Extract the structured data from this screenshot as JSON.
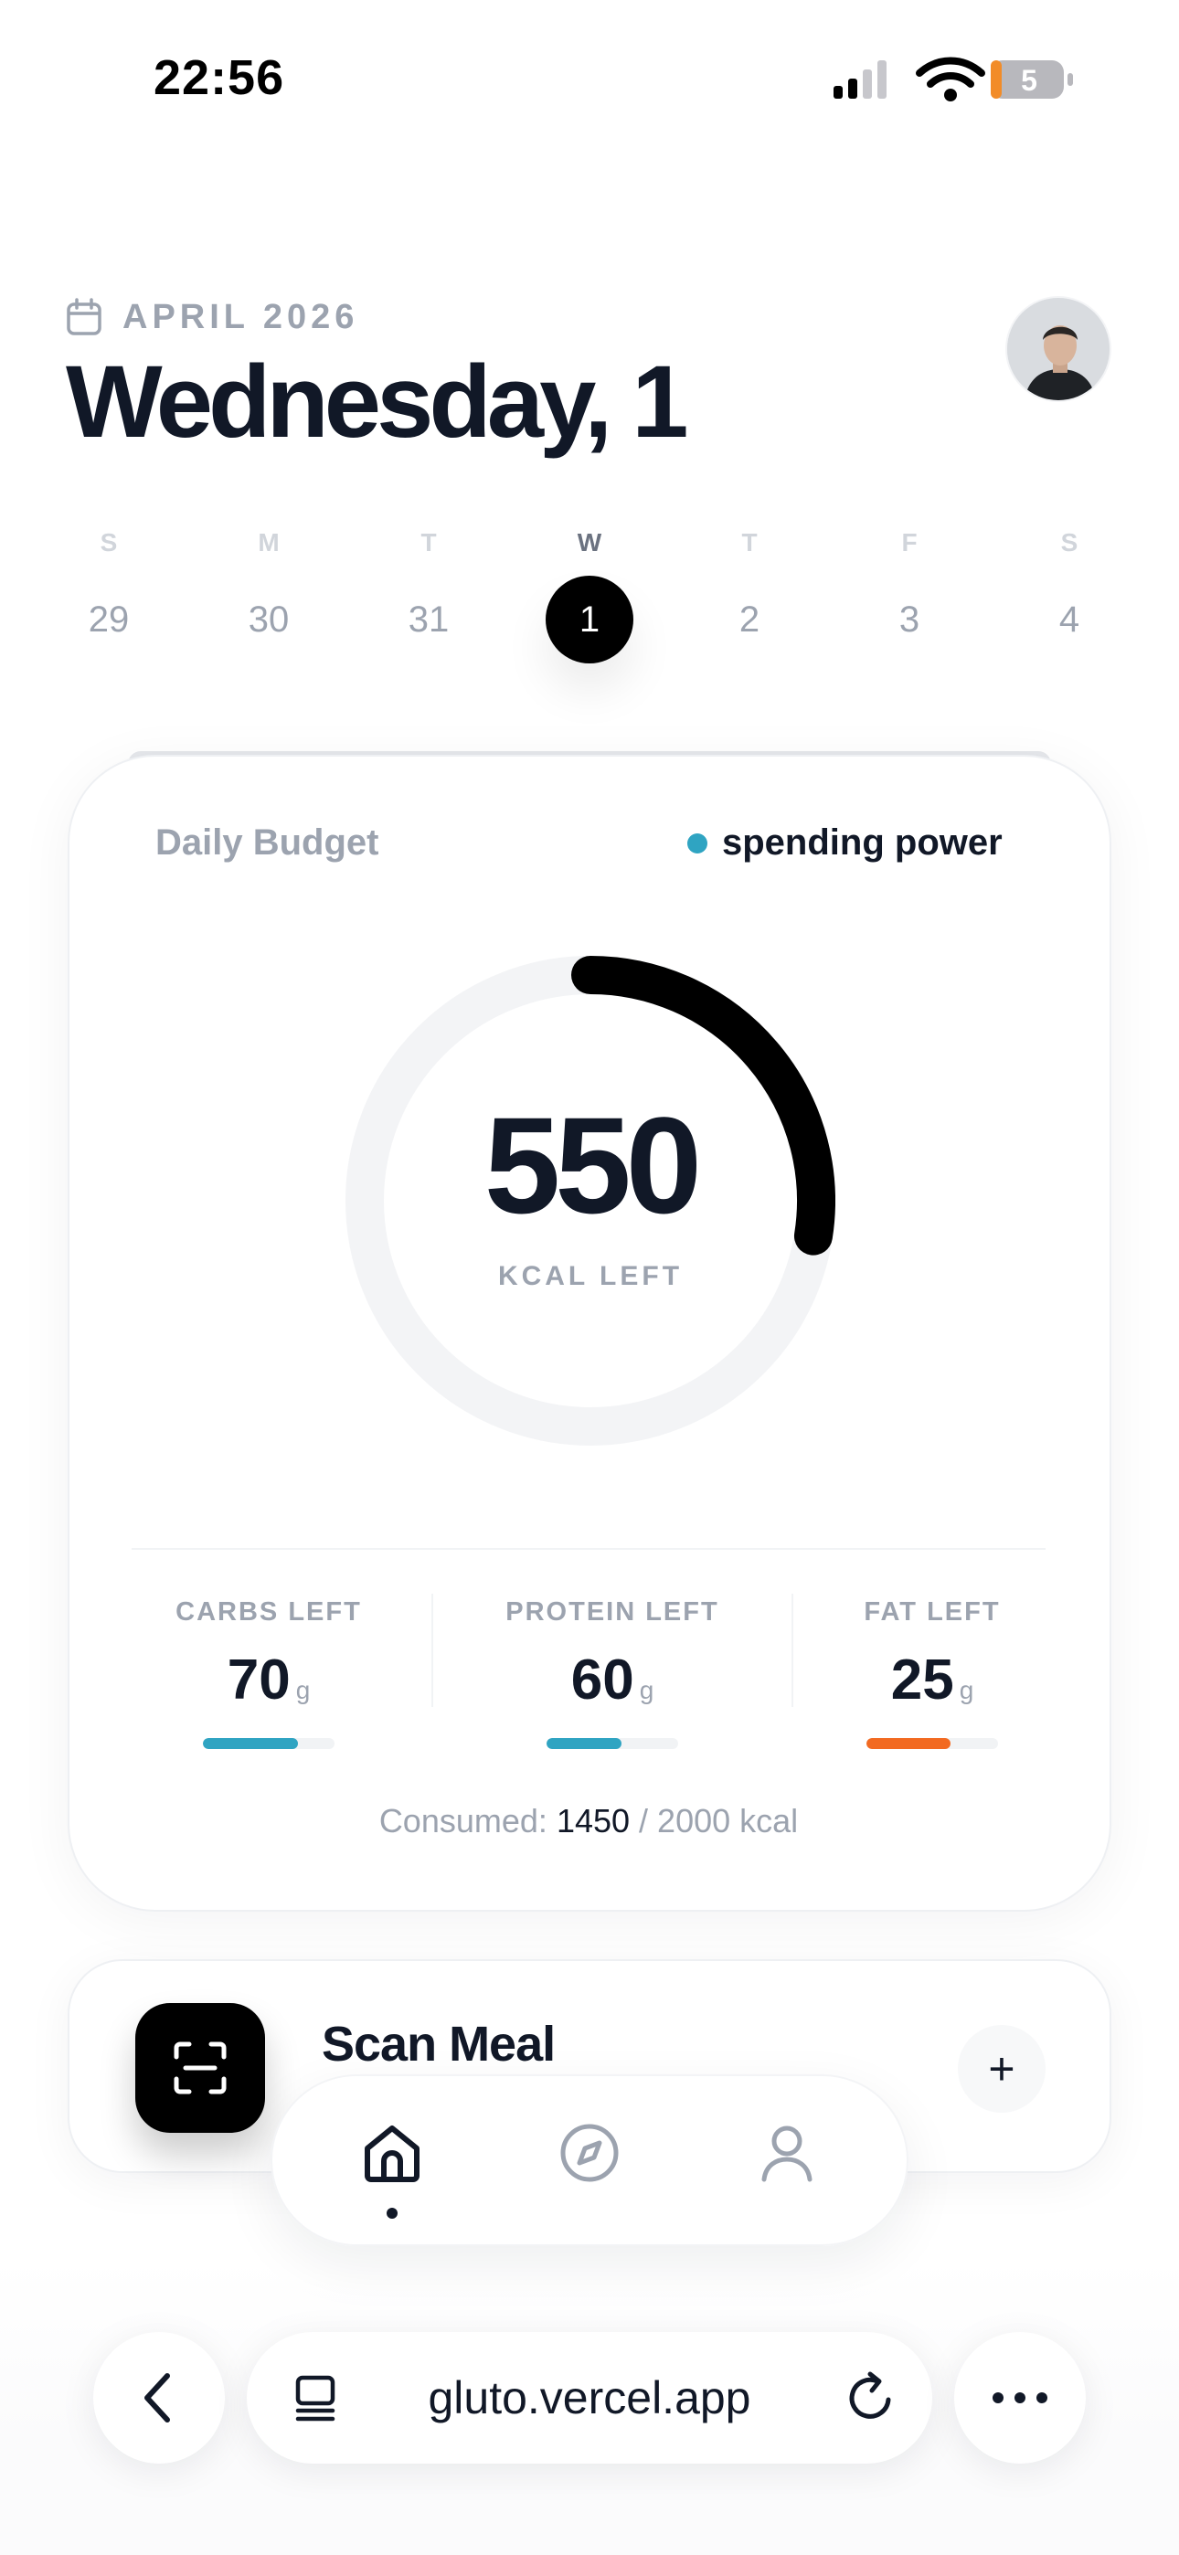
{
  "status_bar": {
    "time": "22:56",
    "battery": "5"
  },
  "header": {
    "month": "APRIL 2026",
    "title": "Wednesday, 1"
  },
  "week": [
    {
      "letter": "S",
      "day": "29",
      "active": false
    },
    {
      "letter": "M",
      "day": "30",
      "active": false
    },
    {
      "letter": "T",
      "day": "31",
      "active": false
    },
    {
      "letter": "W",
      "day": "1",
      "active": true
    },
    {
      "letter": "T",
      "day": "2",
      "active": false
    },
    {
      "letter": "F",
      "day": "3",
      "active": false
    },
    {
      "letter": "S",
      "day": "4",
      "active": false
    }
  ],
  "budget": {
    "label": "Daily Budget",
    "legend": "spending power",
    "kcal_left": "550",
    "kcal_label": "KCAL LEFT",
    "ring_fraction": 0.275,
    "consumed_prefix": "Consumed:",
    "consumed_value": "1450",
    "consumed_suffix": "/ 2000 kcal"
  },
  "macros": [
    {
      "label": "CARBS LEFT",
      "value": "70",
      "unit": "g",
      "fill": 0.72,
      "color": "#2fa4c2"
    },
    {
      "label": "PROTEIN LEFT",
      "value": "60",
      "unit": "g",
      "fill": 0.57,
      "color": "#2fa4c2"
    },
    {
      "label": "FAT LEFT",
      "value": "25",
      "unit": "g",
      "fill": 0.64,
      "color": "#f26a21"
    }
  ],
  "scan": {
    "title": "Scan Meal",
    "add_symbol": "+"
  },
  "browser": {
    "url": "gluto.vercel.app"
  },
  "colors": {
    "accent": "#2fa4c2",
    "fat": "#f26a21",
    "ink": "#111827",
    "muted": "#9ca3af"
  },
  "icons": [
    "calendar-icon",
    "scan-icon",
    "home-icon",
    "compass-icon",
    "user-icon",
    "back-chevron-icon",
    "tabs-icon",
    "reload-icon",
    "more-icon"
  ]
}
